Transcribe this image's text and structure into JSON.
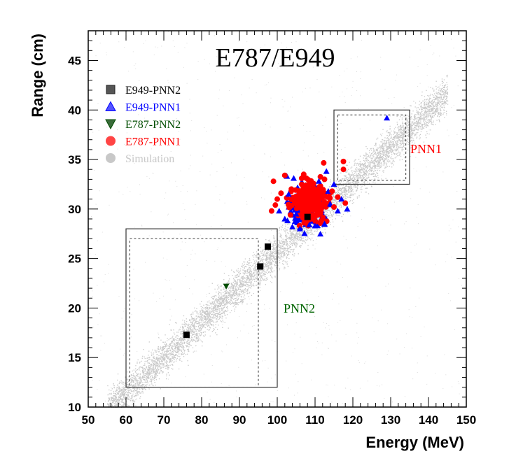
{
  "chart_data": {
    "type": "scatter",
    "title": "E787/E949",
    "xlabel": "Energy (MeV)",
    "ylabel": "Range (cm)",
    "xlim": [
      50,
      150
    ],
    "ylim": [
      10,
      48
    ],
    "x_ticks": [
      50,
      60,
      70,
      80,
      90,
      100,
      110,
      120,
      130,
      140,
      150
    ],
    "y_ticks": [
      10,
      15,
      20,
      25,
      30,
      35,
      40,
      45
    ],
    "legend": [
      {
        "name": "E949-PNN2",
        "marker": "square",
        "color": "#000000",
        "icon_color": "#555555"
      },
      {
        "name": "E949-PNN1",
        "marker": "triangle-up",
        "color": "#0000ff",
        "icon_color": "#5555ff"
      },
      {
        "name": "E787-PNN2",
        "marker": "triangle-down",
        "color": "#004d00",
        "icon_color": "#3a6b3a"
      },
      {
        "name": "E787-PNN1",
        "marker": "circle",
        "color": "#ff0000",
        "icon_color": "#ff4444"
      },
      {
        "name": "Simulation",
        "marker": "circle",
        "color": "#c8c8c8",
        "icon_color": "#c8c8c8"
      }
    ],
    "regions": [
      {
        "name": "PNN1",
        "color": "#ff0000",
        "outer": {
          "x": [
            115,
            135
          ],
          "y": [
            32.5,
            40
          ]
        },
        "inner": {
          "x": [
            116,
            134
          ],
          "y": [
            32.9,
            39.5
          ]
        }
      },
      {
        "name": "PNN2",
        "color": "#006400",
        "outer": {
          "x": [
            60,
            100
          ],
          "y": [
            12,
            28
          ]
        },
        "inner": {
          "x": [
            61,
            95
          ],
          "y": [
            12,
            27
          ]
        }
      }
    ],
    "series": [
      {
        "name": "E949-PNN2",
        "points": [
          [
            76,
            17.3
          ],
          [
            95.5,
            24.2
          ],
          [
            97.5,
            26.2
          ],
          [
            108,
            29.2
          ]
        ]
      },
      {
        "name": "E787-PNN2",
        "points": [
          [
            86.5,
            22.2
          ]
        ]
      },
      {
        "name": "E949-PNN1",
        "points": [
          [
            129,
            39.2
          ],
          [
            113,
            33.8
          ],
          [
            117,
            31
          ],
          [
            118.5,
            30
          ],
          [
            115,
            32.5
          ],
          [
            102,
            29
          ],
          [
            104,
            28.2
          ],
          [
            112.5,
            28.5
          ],
          [
            100.5,
            29.8
          ],
          [
            106,
            28
          ],
          [
            110,
            28.3
          ],
          [
            114,
            30.5
          ],
          [
            103,
            31.5
          ],
          [
            116,
            29.8
          ],
          [
            108.5,
            28.4
          ],
          [
            111,
            32.8
          ],
          [
            105,
            29.5
          ],
          [
            113.5,
            31.8
          ]
        ]
      },
      {
        "name": "E787-PNN1",
        "points": [
          [
            117.5,
            34.8
          ],
          [
            117.5,
            34
          ],
          [
            118,
            30.6
          ],
          [
            99,
            32.8
          ],
          [
            98.5,
            29.8
          ],
          [
            100,
            31
          ],
          [
            112.5,
            33
          ],
          [
            102,
            33.4
          ],
          [
            107,
            33.5
          ],
          [
            114.5,
            31.8
          ],
          [
            101,
            31.6
          ],
          [
            99.5,
            30.4
          ],
          [
            116,
            31.2
          ],
          [
            103.5,
            29.4
          ],
          [
            115,
            30.2
          ]
        ]
      }
    ],
    "cluster": {
      "E787-PNN1": {
        "center": [
          108.5,
          30.8
        ],
        "spread": [
          3.6,
          1.2
        ],
        "count": 320
      },
      "E949-PNN1": {
        "center": [
          108,
          30.2
        ],
        "spread": [
          4.2,
          1.3
        ],
        "count": 150
      }
    },
    "simulation_band": {
      "slope": 0.355,
      "intercept": -9.8,
      "x_range": [
        55,
        145
      ],
      "width": 0.9,
      "count": 7000
    }
  }
}
